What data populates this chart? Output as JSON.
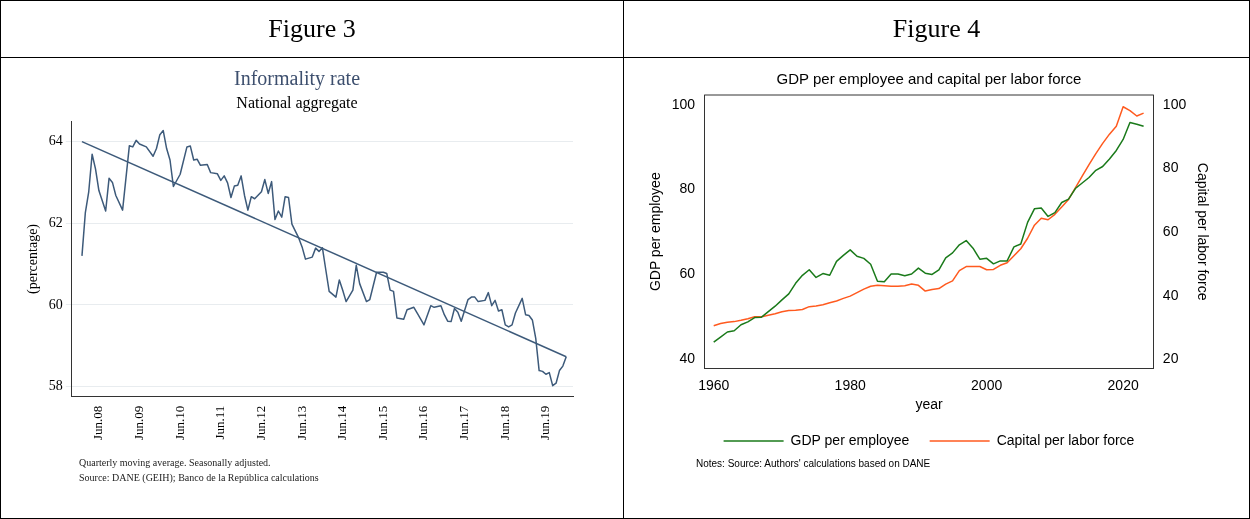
{
  "chart_data": [
    {
      "type": "line",
      "title": "Informality rate",
      "subtitle": "National aggregate",
      "ylabel": "(percentage)",
      "annotations": [
        "Figure 3",
        "Quarterly moving average. Seasonally adjusted.",
        "Source: DANE (GEIH); Banco de la República calculations"
      ],
      "xlim": [
        "2007-10",
        "2020-02"
      ],
      "xticks": [
        {
          "value": "2008-06",
          "label": "Jun.08"
        },
        {
          "value": "2009-06",
          "label": "Jun.09"
        },
        {
          "value": "2010-06",
          "label": "Jun.10"
        },
        {
          "value": "2011-06",
          "label": "Jun.11"
        },
        {
          "value": "2012-06",
          "label": "Jun.12"
        },
        {
          "value": "2013-06",
          "label": "Jun.13"
        },
        {
          "value": "2014-06",
          "label": "Jun.14"
        },
        {
          "value": "2015-06",
          "label": "Jun.15"
        },
        {
          "value": "2016-06",
          "label": "Jun.16"
        },
        {
          "value": "2017-06",
          "label": "Jun.17"
        },
        {
          "value": "2018-06",
          "label": "Jun.18"
        },
        {
          "value": "2019-06",
          "label": "Jun.19"
        }
      ],
      "ylim": [
        57.75,
        64.5
      ],
      "yticks": [
        58,
        60,
        62,
        64
      ],
      "grid": "y",
      "legend": false,
      "marker": "none",
      "series": [
        {
          "color": "#3d5a7a",
          "x": [
            "2008-01",
            "2008-02",
            "2008-03",
            "2008-04",
            "2008-05",
            "2008-06",
            "2008-08",
            "2008-09",
            "2008-10",
            "2008-11",
            "2009-01",
            "2009-03",
            "2009-04",
            "2009-05",
            "2009-06",
            "2009-08",
            "2009-10",
            "2009-11",
            "2009-12",
            "2010-01",
            "2010-02",
            "2010-03",
            "2010-04",
            "2010-06",
            "2010-08",
            "2010-09",
            "2010-10",
            "2010-11",
            "2010-12",
            "2011-02",
            "2011-03",
            "2011-05",
            "2011-06",
            "2011-07",
            "2011-08",
            "2011-09",
            "2011-10",
            "2011-11",
            "2011-12",
            "2012-01",
            "2012-02",
            "2012-03",
            "2012-04",
            "2012-06",
            "2012-07",
            "2012-08",
            "2012-09",
            "2012-10",
            "2012-11",
            "2012-12",
            "2013-01",
            "2013-02",
            "2013-03",
            "2013-05",
            "2013-06",
            "2013-07",
            "2013-09",
            "2013-10",
            "2013-11",
            "2013-12",
            "2014-01",
            "2014-02",
            "2014-04",
            "2014-05",
            "2014-06",
            "2014-07",
            "2014-09",
            "2014-10",
            "2014-11",
            "2015-01",
            "2015-02",
            "2015-04",
            "2015-06",
            "2015-07",
            "2015-08",
            "2015-09",
            "2015-10",
            "2015-12",
            "2016-01",
            "2016-03",
            "2016-04",
            "2016-06",
            "2016-08",
            "2016-09",
            "2016-11",
            "2016-12",
            "2017-01",
            "2017-02",
            "2017-03",
            "2017-04",
            "2017-05",
            "2017-07",
            "2017-08",
            "2017-09",
            "2017-10",
            "2017-12",
            "2018-01",
            "2018-02",
            "2018-03",
            "2018-04",
            "2018-05",
            "2018-06",
            "2018-07",
            "2018-08",
            "2018-09",
            "2018-11",
            "2018-12",
            "2019-01",
            "2019-02",
            "2019-03",
            "2019-04",
            "2019-05",
            "2019-06",
            "2019-07",
            "2019-08",
            "2019-09",
            "2019-10",
            "2019-11",
            "2019-12"
          ],
          "values": [
            61.2,
            62.26,
            62.77,
            63.69,
            63.33,
            62.8,
            62.3,
            63.1,
            63.0,
            62.68,
            62.32,
            63.9,
            63.87,
            64.03,
            63.94,
            63.87,
            63.64,
            63.83,
            64.17,
            64.27,
            63.83,
            63.55,
            62.9,
            63.2,
            63.87,
            63.89,
            63.55,
            63.57,
            63.42,
            63.44,
            63.24,
            63.21,
            63.05,
            63.16,
            62.99,
            62.63,
            62.91,
            62.93,
            63.16,
            62.68,
            62.32,
            62.65,
            62.6,
            62.77,
            63.07,
            62.73,
            63.02,
            62.09,
            62.3,
            62.15,
            62.65,
            62.63,
            61.98,
            61.64,
            61.42,
            61.12,
            61.17,
            61.39,
            61.31,
            61.4,
            60.86,
            60.33,
            60.19,
            60.61,
            60.36,
            60.08,
            60.36,
            60.97,
            60.52,
            60.08,
            60.13,
            60.8,
            60.8,
            60.77,
            60.36,
            60.33,
            59.68,
            59.65,
            59.88,
            59.94,
            59.8,
            59.51,
            59.98,
            59.94,
            59.98,
            59.76,
            59.6,
            59.59,
            59.91,
            59.82,
            59.6,
            60.13,
            60.19,
            60.19,
            60.08,
            60.11,
            60.3,
            59.98,
            60.11,
            59.85,
            59.88,
            59.51,
            59.46,
            59.51,
            59.8,
            60.16,
            59.76,
            59.74,
            59.63,
            59.18,
            58.39,
            58.37,
            58.3,
            58.34,
            58.02,
            58.08,
            58.39,
            58.5,
            58.73
          ]
        },
        {
          "type": "line",
          "color": "#3d5a7a",
          "x": [
            "2008-01",
            "2019-12"
          ],
          "values": [
            64.0,
            58.73
          ]
        }
      ]
    },
    {
      "type": "line",
      "title": "GDP per employee and capital per labor force",
      "xlabel": "year",
      "ylabel": "GDP per employee",
      "y2label": "Capital per labor force",
      "annotations": [
        "Figure 4",
        "Notes: Source: Authors' calculations based on DANE"
      ],
      "x": [
        1960,
        1961,
        1962,
        1963,
        1964,
        1965,
        1966,
        1967,
        1968,
        1969,
        1970,
        1971,
        1972,
        1973,
        1974,
        1975,
        1976,
        1977,
        1978,
        1979,
        1980,
        1981,
        1982,
        1983,
        1984,
        1985,
        1986,
        1987,
        1988,
        1989,
        1990,
        1991,
        1992,
        1993,
        1994,
        1995,
        1996,
        1997,
        1998,
        1999,
        2000,
        2001,
        2002,
        2003,
        2004,
        2005,
        2006,
        2007,
        2008,
        2009,
        2010,
        2011,
        2012,
        2013,
        2014,
        2015,
        2016,
        2017,
        2018,
        2019,
        2020,
        2021,
        2022,
        2023
      ],
      "xlim": [
        1958.6,
        2024.5
      ],
      "xticks": [
        1960,
        1980,
        2000,
        2020
      ],
      "ylim": [
        37.7,
        102.3
      ],
      "yticks": [
        40,
        60,
        80,
        100
      ],
      "y2lim": [
        17.2,
        103.1
      ],
      "y2ticks": [
        20,
        40,
        60,
        80,
        100
      ],
      "legend": "bottom",
      "marker": "none",
      "series": [
        {
          "name": "GDP per employee",
          "color": "#1a7a1a",
          "values": [
            43.9,
            45.1,
            46.3,
            46.6,
            48.0,
            48.7,
            49.7,
            49.8,
            51.1,
            52.4,
            53.9,
            55.3,
            57.8,
            59.7,
            61.0,
            59.2,
            60.1,
            59.7,
            63.0,
            64.4,
            65.7,
            64.2,
            63.7,
            62.3,
            58.3,
            58.2,
            60.0,
            60.0,
            59.6,
            60.0,
            61.4,
            60.2,
            59.9,
            61.0,
            63.8,
            65.0,
            66.9,
            67.9,
            66.1,
            63.5,
            63.7,
            62.4,
            63.1,
            63.1,
            66.4,
            67.1,
            72.2,
            75.4,
            75.6,
            73.6,
            74.5,
            76.9,
            77.7,
            80.2,
            81.5,
            82.8,
            84.5,
            85.4,
            87.2,
            89.2,
            91.8,
            95.8,
            95.4,
            94.9
          ]
        },
        {
          "name": "Capital per labor force",
          "color": "#ff5a1f",
          "axis": "y2",
          "values": [
            30.6,
            31.3,
            31.7,
            31.9,
            32.3,
            32.8,
            33.4,
            33.4,
            33.9,
            34.4,
            35.0,
            35.4,
            35.5,
            35.7,
            36.6,
            36.8,
            37.2,
            37.8,
            38.4,
            39.2,
            39.9,
            41.0,
            42.1,
            43.0,
            43.3,
            43.2,
            43.0,
            43.0,
            43.2,
            43.7,
            43.3,
            41.5,
            42.0,
            42.3,
            43.7,
            44.7,
            47.9,
            49.2,
            49.2,
            49.2,
            48.2,
            48.3,
            49.6,
            50.4,
            52.6,
            54.8,
            58.1,
            62.2,
            64.4,
            63.9,
            65.6,
            67.9,
            70.3,
            73.9,
            77.6,
            81.2,
            84.7,
            87.9,
            90.8,
            93.3,
            99.4,
            98.2,
            96.5,
            97.4
          ]
        }
      ]
    }
  ]
}
